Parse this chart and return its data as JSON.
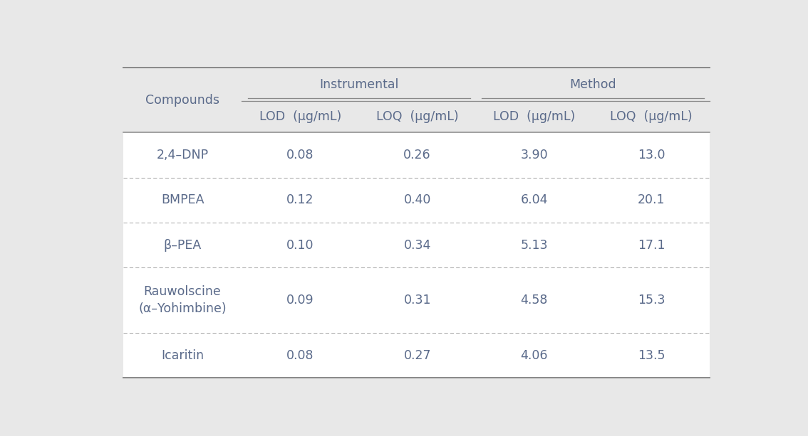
{
  "background_color": "#e8e8e8",
  "table_bg": "#ffffff",
  "header_bg": "#e8e8e8",
  "header_group": [
    "Instrumental",
    "Method"
  ],
  "col_headers": [
    "LOD  (μg/mL)",
    "LOQ  (μg/mL)",
    "LOD  (μg/mL)",
    "LOQ  (μg/mL)"
  ],
  "row_header": "Compounds",
  "rows": [
    {
      "compound": "2,4–DNP",
      "values": [
        "0.08",
        "0.26",
        "3.90",
        "13.0"
      ],
      "two_line": false
    },
    {
      "compound": "BMPEA",
      "values": [
        "0.12",
        "0.40",
        "6.04",
        "20.1"
      ],
      "two_line": false
    },
    {
      "compound": "β–PEA",
      "values": [
        "0.10",
        "0.34",
        "5.13",
        "17.1"
      ],
      "two_line": false
    },
    {
      "compound": "Rauwolscine\n(α–Yohimbine)",
      "values": [
        "0.09",
        "0.31",
        "4.58",
        "15.3"
      ],
      "two_line": true
    },
    {
      "compound": "Icaritin",
      "values": [
        "0.08",
        "0.27",
        "4.06",
        "13.5"
      ],
      "two_line": false
    }
  ],
  "text_color": "#5a6a8a",
  "header_text_color": "#5a6a8a",
  "solid_line_color": "#888888",
  "dashed_line_color": "#aaaaaa",
  "font_size": 12.5,
  "header_font_size": 12.5,
  "fig_width": 11.34,
  "fig_height": 6.13,
  "dpi": 100
}
